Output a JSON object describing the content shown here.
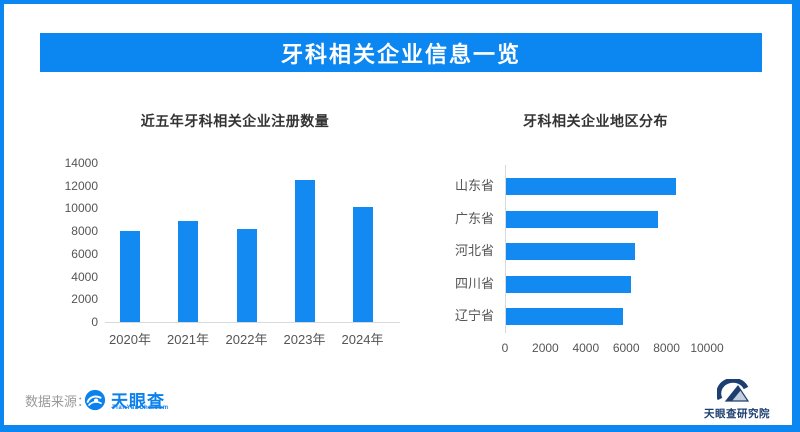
{
  "banner": {
    "title": "牙科相关企业信息一览"
  },
  "colors": {
    "accent": "#0c86f0",
    "bar": "#1389f2",
    "chart_title": "#333333",
    "tick_text": "#555555",
    "axis_line": "#d9d9d9",
    "source_text": "#999999",
    "tyc_blue": "#0b81ee",
    "institute_navy": "#1d3f70",
    "institute_light": "#c3cfdf"
  },
  "chart_data": [
    {
      "type": "bar",
      "orientation": "vertical",
      "title": "近五年牙科相关企业注册数量",
      "categories": [
        "2020年",
        "2021年",
        "2022年",
        "2023年",
        "2024年"
      ],
      "values": [
        8000,
        8900,
        8200,
        12500,
        10100
      ],
      "ylabel": "",
      "xlabel": "",
      "ylim": [
        0,
        14000
      ],
      "ytick_step": 2000,
      "grid": false,
      "legend": false
    },
    {
      "type": "bar",
      "orientation": "horizontal",
      "title": "牙科相关企业地区分布",
      "categories": [
        "山东省",
        "广东省",
        "河北省",
        "四川省",
        "辽宁省"
      ],
      "values": [
        8400,
        7500,
        6400,
        6200,
        5800
      ],
      "ylabel": "",
      "xlabel": "",
      "xlim": [
        0,
        10000
      ],
      "xtick_step": 2000,
      "grid": false,
      "legend": false
    }
  ],
  "footer": {
    "source_label": "数据来源：",
    "tyc_logo_text": "天眼查",
    "tyc_logo_subtext": "TianYanCha.com",
    "institute_name": "天眼查研究院"
  }
}
